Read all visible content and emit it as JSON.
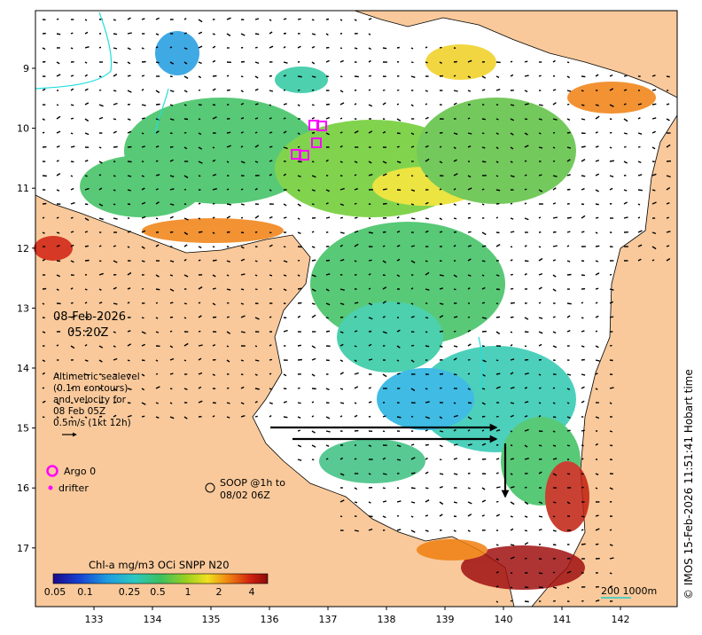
{
  "map": {
    "date": "08-Feb-2026",
    "time": "05:20Z",
    "lat_ticks": [
      "9",
      "10",
      "11",
      "12",
      "13",
      "14",
      "15",
      "16",
      "17"
    ],
    "lon_ticks": [
      "133",
      "134",
      "135",
      "136",
      "137",
      "138",
      "139",
      "140",
      "141",
      "142"
    ],
    "altimetry_lines": [
      "Altimetric sealevel",
      "(0.1m contours)",
      "and velocity for",
      "08 Feb 05Z",
      "0.5m/s (1kt 12h)"
    ],
    "argo_label": "Argo 0",
    "drifter_label": "drifter",
    "soop_lines": [
      "SOOP @1h to",
      "08/02 06Z"
    ],
    "colorbar_title": "Chl-a mg/m3 OCi SNPP N20",
    "colorbar_ticks": [
      "0.05",
      "0.1",
      "0.25",
      "0.5",
      "1",
      "2",
      "4"
    ],
    "scale_label": "200  1000m",
    "copyright": "© IMOS 15-Feb-2026 11:51:41 Hobart time"
  },
  "colors": {
    "land": "#f9c99b",
    "argo": "#ff00ff",
    "contour": "#22dddd",
    "scale_line": "#22cccc"
  }
}
